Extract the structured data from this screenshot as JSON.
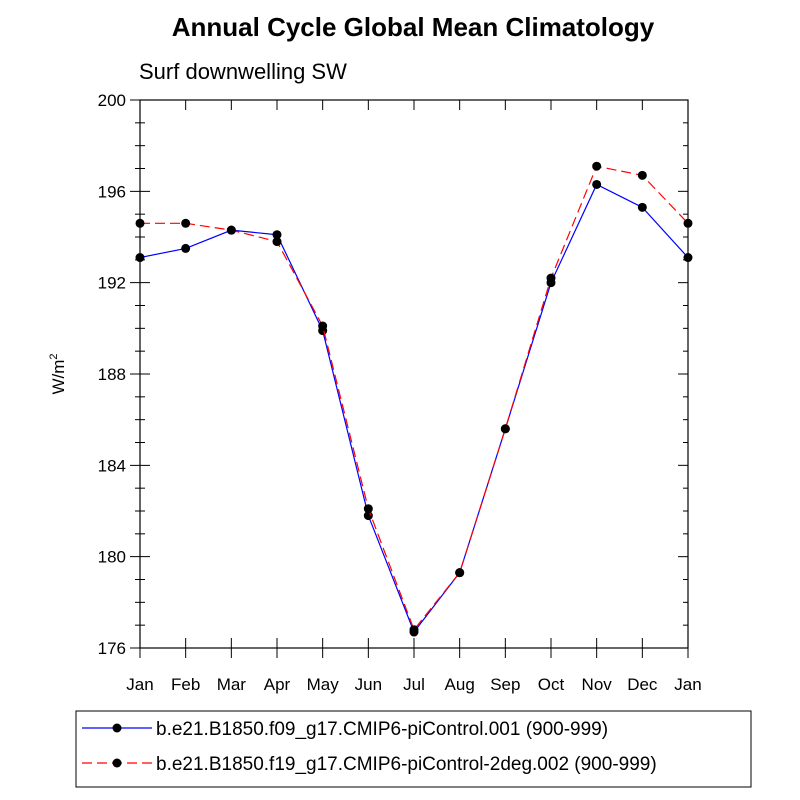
{
  "chart_data": {
    "type": "line",
    "title": "Annual Cycle Global Mean Climatology",
    "subtitle": "Surf downwelling SW",
    "ylabel": "W/m",
    "ylabel_superscript": "2",
    "categories": [
      "Jan",
      "Feb",
      "Mar",
      "Apr",
      "May",
      "Jun",
      "Jul",
      "Aug",
      "Sep",
      "Oct",
      "Nov",
      "Dec",
      "Jan"
    ],
    "ylim": [
      176,
      200
    ],
    "yticks": [
      "176",
      "180",
      "184",
      "188",
      "192",
      "196",
      "200"
    ],
    "grid": false,
    "legend_position": "bottom",
    "series": [
      {
        "name": "b.e21.B1850.f09_g17.CMIP6-piControl.001 (900-999)",
        "color": "#0000ff",
        "dash": "solid",
        "values": [
          193.1,
          193.5,
          194.3,
          194.1,
          189.9,
          181.8,
          176.7,
          179.3,
          185.6,
          192.0,
          196.3,
          195.3,
          193.1
        ]
      },
      {
        "name": "b.e21.B1850.f19_g17.CMIP6-piControl-2deg.002 (900-999)",
        "color": "#ff0000",
        "dash": "dashed",
        "values": [
          194.6,
          194.6,
          194.3,
          193.8,
          190.1,
          182.1,
          176.8,
          179.3,
          185.6,
          192.2,
          197.1,
          196.7,
          194.6
        ]
      }
    ]
  }
}
